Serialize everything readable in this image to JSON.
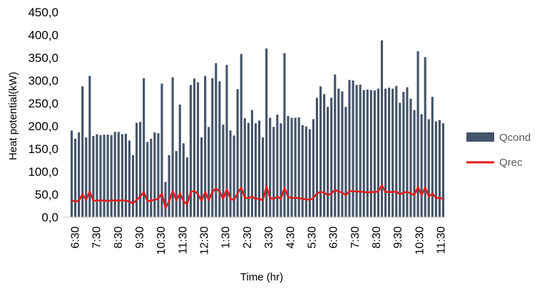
{
  "chart_data": {
    "type": "bar+line",
    "title": "",
    "xlabel": "Time (hr)",
    "ylabel": "Heat potential(kW)",
    "ylim": [
      0,
      450
    ],
    "yticks": [
      "0,0",
      "50,0",
      "100,0",
      "150,0",
      "200,0",
      "250,0",
      "300,0",
      "350,0",
      "400,0",
      "450,0"
    ],
    "xtick_labels": [
      "6:30",
      "7:30",
      "8:30",
      "9:30",
      "10:30",
      "11:30",
      "12:30",
      "1:30",
      "2:30",
      "3:30",
      "4:30",
      "5:30",
      "6:30",
      "7:30",
      "8:30",
      "9:30",
      "10:30",
      "11:30"
    ],
    "grid": false,
    "legend_position": "right",
    "series": [
      {
        "name": "Qcond",
        "type": "bar",
        "color": "#44546A",
        "values": [
          190,
          172,
          186,
          287,
          175,
          310,
          178,
          182,
          180,
          181,
          181,
          180,
          187,
          187,
          182,
          183,
          168,
          136,
          207,
          209,
          305,
          165,
          172,
          186,
          184,
          293,
          77,
          136,
          307,
          145,
          247,
          162,
          131,
          290,
          304,
          296,
          175,
          310,
          198,
          305,
          338,
          298,
          203,
          334,
          190,
          179,
          281,
          358,
          217,
          207,
          235,
          206,
          212,
          175,
          370,
          218,
          198,
          225,
          206,
          360,
          222,
          218,
          218,
          219,
          202,
          199,
          193,
          215,
          262,
          287,
          270,
          242,
          262,
          313,
          282,
          276,
          242,
          301,
          300,
          290,
          291,
          279,
          280,
          279,
          278,
          282,
          388,
          282,
          284,
          282,
          288,
          251,
          275,
          285,
          260,
          235,
          364,
          226,
          351,
          215,
          264,
          210,
          213,
          206
        ]
      },
      {
        "name": "Qrec",
        "type": "line",
        "color": "#E51B1B",
        "values": [
          37,
          34,
          36,
          50,
          38,
          56,
          36,
          36,
          37,
          36,
          36,
          36,
          37,
          36,
          37,
          36,
          34,
          30,
          38,
          45,
          55,
          35,
          36,
          38,
          40,
          52,
          20,
          35,
          57,
          37,
          52,
          35,
          28,
          55,
          58,
          50,
          36,
          55,
          38,
          55,
          63,
          56,
          40,
          61,
          40,
          38,
          52,
          65,
          42,
          42,
          45,
          40,
          41,
          36,
          67,
          42,
          40,
          45,
          40,
          64,
          44,
          42,
          42,
          42,
          40,
          39,
          38,
          42,
          52,
          55,
          54,
          48,
          52,
          60,
          56,
          54,
          48,
          57,
          57,
          56,
          56,
          55,
          54,
          55,
          55,
          56,
          70,
          55,
          55,
          55,
          56,
          50,
          54,
          55,
          52,
          48,
          66,
          48,
          65,
          45,
          52,
          42,
          42,
          40
        ]
      }
    ]
  }
}
